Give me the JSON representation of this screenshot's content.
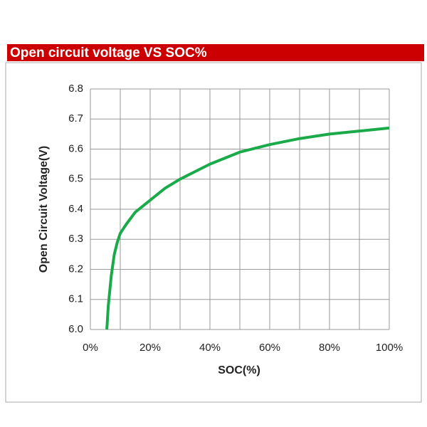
{
  "chart_data": {
    "type": "line",
    "title": "Open circuit voltage VS SOC%",
    "xlabel": "SOC(%)",
    "ylabel": "Open Circuit Voltage(V)",
    "x": [
      5.5,
      6,
      7,
      8,
      9,
      10,
      12,
      15,
      20,
      25,
      30,
      40,
      50,
      60,
      70,
      80,
      90,
      100
    ],
    "series": [
      {
        "color": "#1aaa4a",
        "values": [
          6.0,
          6.08,
          6.18,
          6.25,
          6.29,
          6.32,
          6.35,
          6.39,
          6.43,
          6.47,
          6.5,
          6.55,
          6.59,
          6.615,
          6.635,
          6.65,
          6.66,
          6.67
        ]
      }
    ],
    "xlim": [
      0,
      100
    ],
    "xticks": [
      {
        "value": 0,
        "label": "0%"
      },
      {
        "value": 20,
        "label": "20%"
      },
      {
        "value": 40,
        "label": "40%"
      },
      {
        "value": 60,
        "label": "60%"
      },
      {
        "value": 80,
        "label": "80%"
      },
      {
        "value": 100,
        "label": "100%"
      }
    ],
    "xgrid": [
      0,
      10,
      20,
      30,
      40,
      50,
      60,
      70,
      80,
      90,
      100
    ],
    "ylim": [
      6.0,
      6.8
    ],
    "yticks": [
      {
        "value": 6.0,
        "label": "6.0"
      },
      6.1,
      6.2,
      6.3,
      6.4,
      6.5,
      6.6,
      6.7,
      6.8
    ],
    "grid": true
  }
}
